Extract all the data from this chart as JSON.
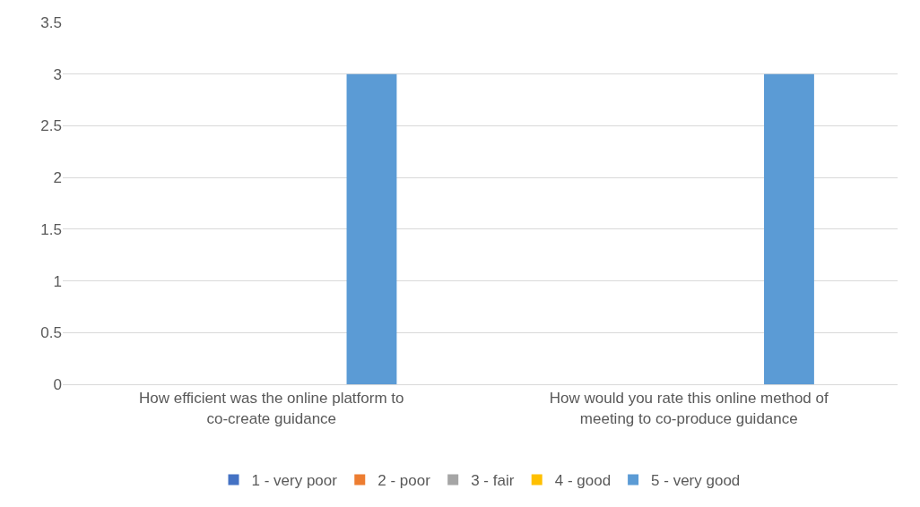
{
  "chart_data": {
    "type": "bar",
    "categories": [
      "How efficient was the online platform to co-create guidance",
      "How would you rate this online method of meeting to co-produce guidance"
    ],
    "series": [
      {
        "name": "1 - very poor",
        "color": "#4472c4",
        "values": [
          0,
          0
        ]
      },
      {
        "name": "2 - poor",
        "color": "#ed7d31",
        "values": [
          0,
          0
        ]
      },
      {
        "name": "3 - fair",
        "color": "#a5a5a5",
        "values": [
          0,
          0
        ]
      },
      {
        "name": "4 - good",
        "color": "#ffc000",
        "values": [
          0,
          0
        ]
      },
      {
        "name": "5 - very good",
        "color": "#5b9bd5",
        "values": [
          3,
          3
        ]
      }
    ],
    "ylim": [
      0,
      3.5
    ],
    "yticks": [
      0,
      0.5,
      1,
      1.5,
      2,
      2.5,
      3,
      3.5
    ],
    "grid": "y",
    "legend": "bottom"
  }
}
